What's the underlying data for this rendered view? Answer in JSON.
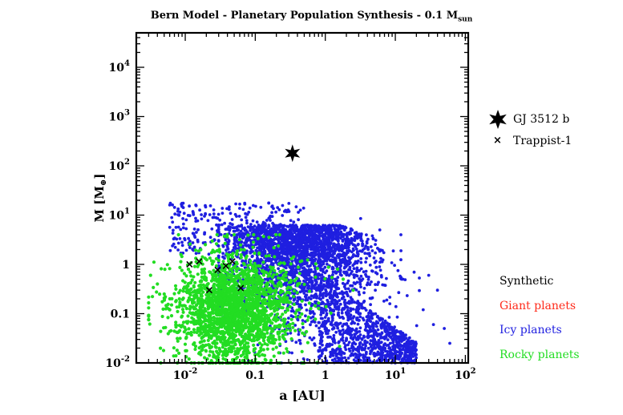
{
  "chart_data": {
    "type": "scatter",
    "title_main": "Bern Model - Planetary Population Synthesis - 0.1 M",
    "title_sub": "sun",
    "xlabel": "a [AU]",
    "ylabel_main": "M [M",
    "ylabel_symbol": "⊕",
    "ylabel_end": "]",
    "x_scale": "log",
    "y_scale": "log",
    "xlim": [
      0.002,
      110
    ],
    "ylim": [
      0.01,
      50000
    ],
    "x_ticks": [
      {
        "value": 0.01,
        "base": "10",
        "exp": "-2",
        "label": ""
      },
      {
        "value": 0.1,
        "base": "",
        "exp": "",
        "label": "0.1"
      },
      {
        "value": 1,
        "base": "",
        "exp": "",
        "label": "1"
      },
      {
        "value": 10,
        "base": "10",
        "exp": "1",
        "label": ""
      },
      {
        "value": 100,
        "base": "10",
        "exp": "2",
        "label": ""
      }
    ],
    "y_ticks": [
      {
        "value": 0.01,
        "base": "10",
        "exp": "-2",
        "label": ""
      },
      {
        "value": 0.1,
        "base": "",
        "exp": "",
        "label": "0.1"
      },
      {
        "value": 1,
        "base": "",
        "exp": "",
        "label": "1"
      },
      {
        "value": 10,
        "base": "10",
        "exp": "1",
        "label": ""
      },
      {
        "value": 100,
        "base": "10",
        "exp": "2",
        "label": ""
      },
      {
        "value": 1000,
        "base": "10",
        "exp": "3",
        "label": ""
      },
      {
        "value": 10000,
        "base": "10",
        "exp": "4",
        "label": ""
      }
    ],
    "grid": false,
    "legend_position": "right",
    "markers_legend": [
      {
        "name": "GJ 3512 b",
        "marker": "star"
      },
      {
        "name": "Trappist-1",
        "marker": "x"
      }
    ],
    "populations_legend": [
      {
        "name": "Synthetic",
        "color": "#000000"
      },
      {
        "name": "Giant planets",
        "color": "#ff2a1a"
      },
      {
        "name": "Icy planets",
        "color": "#1f1fe0"
      },
      {
        "name": "Rocky planets",
        "color": "#22dd22"
      }
    ],
    "series": [
      {
        "name": "GJ 3512 b",
        "marker": "star",
        "color": "#000000",
        "points": [
          [
            0.34,
            180
          ]
        ]
      },
      {
        "name": "Trappist-1",
        "marker": "x",
        "color": "#000000",
        "points": [
          [
            0.0115,
            1.0
          ],
          [
            0.0158,
            1.15
          ],
          [
            0.022,
            0.3
          ],
          [
            0.029,
            0.77
          ],
          [
            0.038,
            0.93
          ],
          [
            0.047,
            1.15
          ],
          [
            0.062,
            0.33
          ]
        ]
      },
      {
        "name": "Icy planets",
        "marker": "dot",
        "color": "#1f1fe0",
        "cloud": {
          "x_range": [
            0.008,
            25
          ],
          "y_range": [
            0.01,
            18
          ]
        },
        "outliers": [
          [
            3.2,
            8.5
          ],
          [
            1.5,
            3.2
          ],
          [
            2.2,
            2.5
          ],
          [
            30,
            0.6
          ],
          [
            40,
            0.3
          ],
          [
            25,
            0.12
          ],
          [
            35,
            0.06
          ],
          [
            50,
            0.05
          ],
          [
            60,
            0.025
          ],
          [
            12,
            4
          ],
          [
            6,
            5
          ],
          [
            0.009,
            15
          ],
          [
            0.006,
            16
          ]
        ]
      },
      {
        "name": "Rocky planets",
        "marker": "dot",
        "color": "#22dd22",
        "cloud": {
          "x_range": [
            0.003,
            1.5
          ],
          "y_range": [
            0.01,
            6
          ]
        },
        "outliers": [
          [
            0.0032,
            0.6
          ],
          [
            0.004,
            0.4
          ],
          [
            0.005,
            0.25
          ],
          [
            1.8,
            0.5
          ],
          [
            1.5,
            0.8
          ],
          [
            2.5,
            0.3
          ],
          [
            0.006,
            0.12
          ],
          [
            0.008,
            4
          ]
        ]
      }
    ]
  }
}
